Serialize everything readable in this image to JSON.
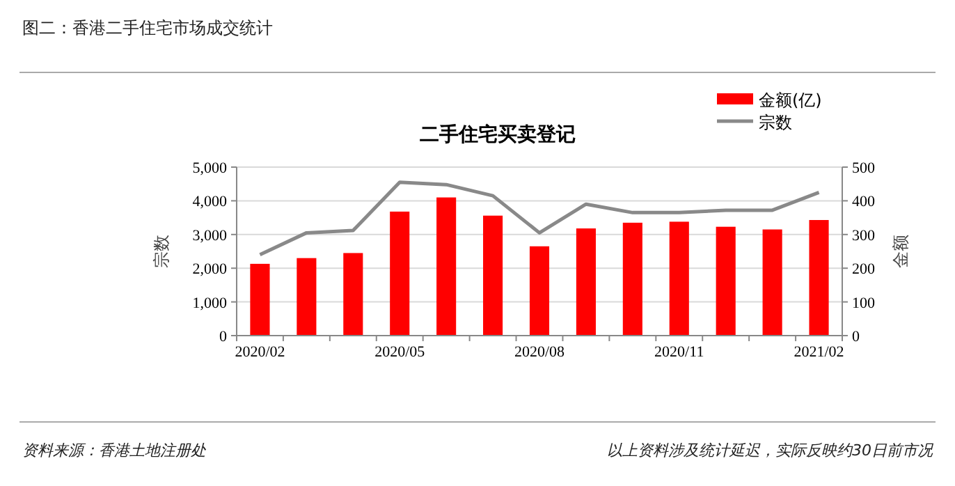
{
  "chart_data": {
    "type": "bar",
    "title": "二手住宅买卖登记",
    "subtitle": "图二：香港二手住宅市场成交统计",
    "annotations": [
      "资料来源：香港土地注册处",
      "以上资料涉及统计延迟，实际反映约30日前市况"
    ],
    "categories": [
      "2020/02",
      null,
      null,
      "2020/05",
      null,
      null,
      "2020/08",
      null,
      null,
      "2020/11",
      null,
      null,
      "2021/02"
    ],
    "series": [
      {
        "name": "金额(亿)",
        "axis": "y2",
        "color": "#ff0000",
        "values": [
          213,
          230,
          245,
          368,
          410,
          356,
          265,
          318,
          335,
          338,
          323,
          315,
          343
        ]
      },
      {
        "name": "宗数",
        "type": "line",
        "color": "#898989",
        "values": [
          2400,
          3050,
          3120,
          4550,
          4480,
          4150,
          3050,
          3900,
          3650,
          3650,
          3720,
          3720,
          4250
        ]
      }
    ],
    "ylabel": "宗数",
    "y2label": "金额",
    "ylim": [
      0,
      5000
    ],
    "yticks": [
      {
        "value": 0,
        "label": "0"
      },
      {
        "value": 1000,
        "label": "1,000"
      },
      {
        "value": 2000,
        "label": "2,000"
      },
      {
        "value": 3000,
        "label": "3,000"
      },
      {
        "value": 4000,
        "label": "4,000"
      },
      {
        "value": 5000,
        "label": "5,000"
      }
    ],
    "y2lim": [
      0,
      500
    ],
    "y2ticks": [
      0,
      100,
      200,
      300,
      400,
      500
    ],
    "grid": "y",
    "legend": "top right"
  }
}
